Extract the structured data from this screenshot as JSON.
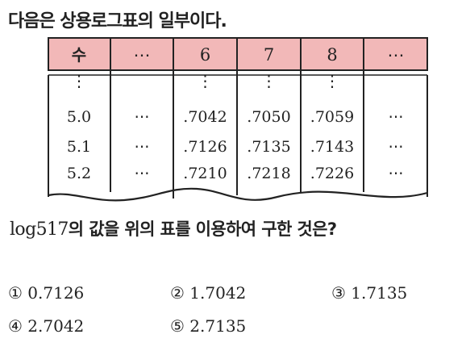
{
  "intro": "다음은 상용로그표의 일부이다.",
  "table": {
    "header": [
      "수",
      "⋯",
      "6",
      "7",
      "8",
      "⋯"
    ],
    "vdots": [
      "⋮",
      "",
      "⋮",
      "⋮",
      "⋮",
      ""
    ],
    "rows": [
      [
        "5.0",
        "⋯",
        ".7042",
        ".7050",
        ".7059",
        "⋯"
      ],
      [
        "5.1",
        "⋯",
        ".7126",
        ".7135",
        ".7143",
        "⋯"
      ],
      [
        "5.2",
        "⋯",
        ".7210",
        ".7218",
        ".7226",
        "⋯"
      ]
    ],
    "header_color": "#f2b8b8"
  },
  "question": {
    "expr": "log517",
    "text": "의 값을 위의 표를 이용하여 구한 것은?"
  },
  "choices": [
    {
      "num": "①",
      "value": "0.7126"
    },
    {
      "num": "②",
      "value": "1.7042"
    },
    {
      "num": "③",
      "value": "1.7135"
    },
    {
      "num": "④",
      "value": "2.7042"
    },
    {
      "num": "⑤",
      "value": "2.7135"
    }
  ]
}
